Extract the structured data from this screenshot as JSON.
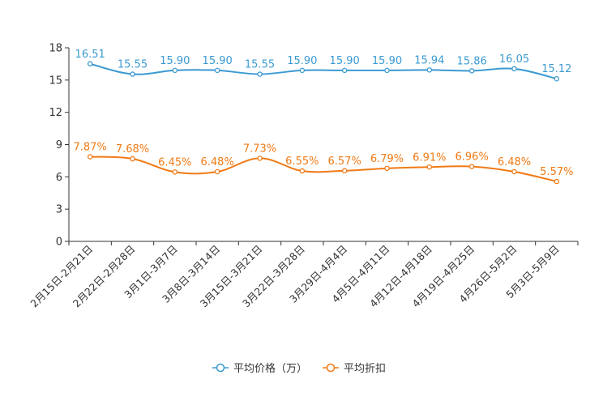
{
  "chart_data": {
    "type": "line",
    "categories": [
      "2月15日-2月21日",
      "2月22日-2月28日",
      "3月1日-3月7日",
      "3月8日-3月14日",
      "3月15日-3月21日",
      "3月22日-3月28日",
      "3月29日-4月4日",
      "4月5日-4月11日",
      "4月12日-4月18日",
      "4月19日-4月25日",
      "4月26日-5月2日",
      "5月3日-5月9日"
    ],
    "y_ticks": [
      "0",
      "3",
      "6",
      "9",
      "12",
      "15",
      "18"
    ],
    "ylim": [
      0,
      18
    ],
    "grid": false,
    "legend_position": "bottom",
    "series": [
      {
        "name": "平均价格（万）",
        "color": "#3b9ad2",
        "values": [
          16.51,
          15.55,
          15.9,
          15.9,
          15.55,
          15.9,
          15.9,
          15.9,
          15.94,
          15.86,
          16.05,
          15.12
        ],
        "labels": [
          "16.51",
          "15.55",
          "15.90",
          "15.90",
          "15.55",
          "15.90",
          "15.90",
          "15.90",
          "15.94",
          "15.86",
          "16.05",
          "15.12"
        ]
      },
      {
        "name": "平均折扣",
        "color": "#f07a16",
        "values": [
          7.87,
          7.68,
          6.45,
          6.48,
          7.73,
          6.55,
          6.57,
          6.79,
          6.91,
          6.96,
          6.48,
          5.57
        ],
        "labels": [
          "7.87%",
          "7.68%",
          "6.45%",
          "6.48%",
          "7.73%",
          "6.55%",
          "6.57%",
          "6.79%",
          "6.91%",
          "6.96%",
          "6.48%",
          "5.57%"
        ]
      }
    ]
  }
}
